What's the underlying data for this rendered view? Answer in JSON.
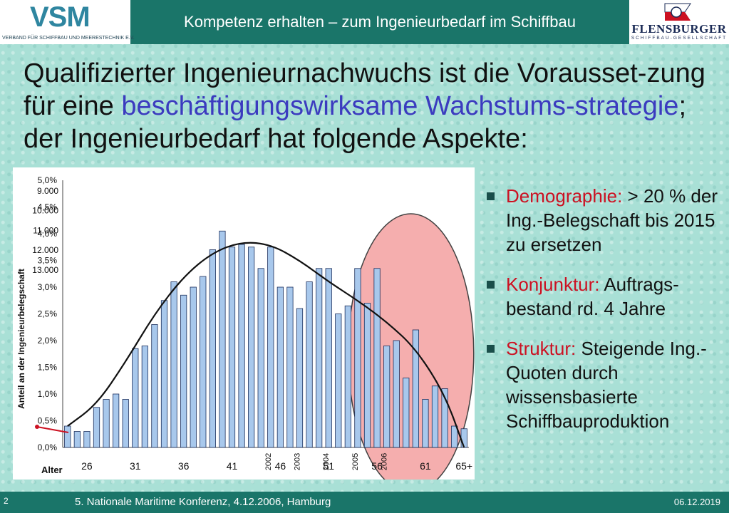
{
  "header": {
    "title": "Kompetenz erhalten – zum Ingenieurbedarf im Schiffbau",
    "logo_left_big": "VSM",
    "logo_left_small": "VERBAND FÜR SCHIFFBAU UND MEERESTECHNIK E.V.",
    "logo_right_name": "FLENSBURGER",
    "logo_right_sub": "SCHIFFBAU-GESELLSCHAFT"
  },
  "headline": {
    "part1": "Qualifizierter Ingenieurnachwuchs ist die Vorausset-zung für eine ",
    "accent": "beschäftigungswirksame Wachstums-strategie",
    "part2": "; der Ingenieurbedarf hat folgende Aspekte:"
  },
  "bullets": [
    {
      "key": "Demographie:",
      "text": " > 20 % der Ing.-Belegschaft bis 2015 zu ersetzen"
    },
    {
      "key": "Konjunktur:",
      "text": " Auftrags-bestand rd. 4 Jahre"
    },
    {
      "key": "Struktur:",
      "text": " Steigende Ing.-Quoten durch wissensbasierte Schiffbauproduktion"
    }
  ],
  "footer": {
    "page": "2",
    "conference": "5. Nationale Maritime Konferenz, 4.12.2006, Hamburg",
    "date": "06.12.2019"
  },
  "colors": {
    "band": "#1a7569",
    "accent_blue": "#3b3bbf",
    "accent_red": "#cc1122",
    "bar_fill": "#a8c8ec",
    "highlight": "#f4a0a0"
  },
  "chart_data": {
    "type": "bar",
    "ylabel": "Anteil an der Ingenieurbelegschaft",
    "xlabel": "Alter",
    "ylim": [
      0,
      5
    ],
    "y_ticks": [
      "0,0%",
      "0,5%",
      "1,0%",
      "1,5%",
      "2,0%",
      "2,5%",
      "3,0%",
      "3,5%",
      "4,0%",
      "4,5%",
      "5,0%"
    ],
    "y_ticks_secondary": [
      "9.000",
      "10.000",
      "11.000",
      "12.000",
      "13.000"
    ],
    "x_tick_labels": [
      "26",
      "31",
      "36",
      "41",
      "46",
      "51",
      "56",
      "61",
      "65+"
    ],
    "year_labels": [
      "2002",
      "2003",
      "2004",
      "2005",
      "2006"
    ],
    "categories": [
      "24",
      "25",
      "26",
      "27",
      "28",
      "29",
      "30",
      "31",
      "32",
      "33",
      "34",
      "35",
      "36",
      "37",
      "38",
      "39",
      "40",
      "41",
      "42",
      "43",
      "44",
      "45",
      "46",
      "47",
      "48",
      "49",
      "50",
      "51",
      "52",
      "53",
      "54",
      "55",
      "56",
      "57",
      "58",
      "59",
      "60",
      "61",
      "62",
      "63",
      "64",
      "65+"
    ],
    "values": [
      0.4,
      0.3,
      0.3,
      0.75,
      0.9,
      1.0,
      0.9,
      1.85,
      1.9,
      2.3,
      2.75,
      3.1,
      2.85,
      3.0,
      3.2,
      3.7,
      4.05,
      3.75,
      3.8,
      3.75,
      3.35,
      3.75,
      3.0,
      3.0,
      2.6,
      3.1,
      3.35,
      3.35,
      2.5,
      2.65,
      3.35,
      2.7,
      3.35,
      1.9,
      2.0,
      1.3,
      2.2,
      0.9,
      1.15,
      1.1,
      0.4,
      0.35
    ],
    "trend": [
      [
        0,
        0.4
      ],
      [
        3,
        0.8
      ],
      [
        6,
        1.6
      ],
      [
        9,
        2.5
      ],
      [
        12,
        3.2
      ],
      [
        15,
        3.65
      ],
      [
        18,
        3.85
      ],
      [
        21,
        3.8
      ],
      [
        24,
        3.5
      ],
      [
        27,
        3.1
      ],
      [
        30,
        2.75
      ],
      [
        33,
        2.35
      ],
      [
        36,
        1.85
      ],
      [
        39,
        1.0
      ],
      [
        41,
        0.0
      ]
    ]
  }
}
